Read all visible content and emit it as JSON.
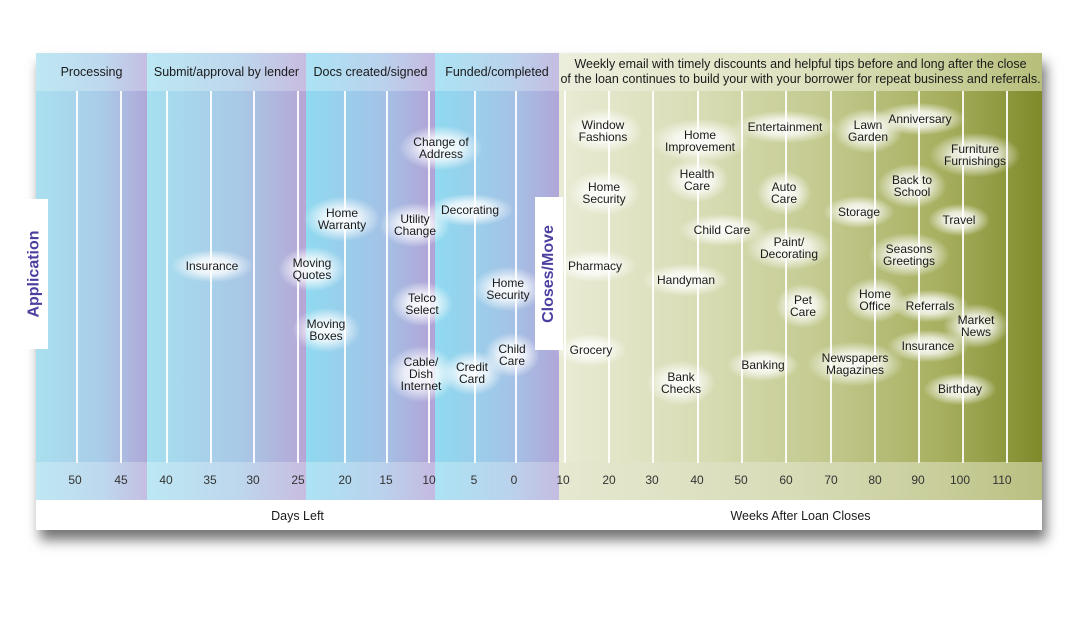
{
  "phases": [
    {
      "label": "Processing"
    },
    {
      "label": "Submit/approval by lender"
    },
    {
      "label": "Docs created/signed"
    },
    {
      "label": "Funded/completed"
    }
  ],
  "weekly_note": {
    "line1": "Weekly email with timely discounts and helpful tips before and long after the close",
    "line2": "of the loan continues to build your with your borrower for repeat business and referrals."
  },
  "markers": {
    "application": "Application",
    "closes_move": "Closes/Move"
  },
  "days_ticks": [
    "50",
    "45",
    "40",
    "35",
    "30",
    "25",
    "20",
    "15",
    "10",
    "5",
    "0"
  ],
  "weeks_ticks": [
    "10",
    "20",
    "30",
    "40",
    "50",
    "60",
    "70",
    "80",
    "90",
    "100",
    "110"
  ],
  "axis_labels": {
    "days": "Days Left",
    "weeks": "Weeks After  Loan Closes"
  },
  "pre_close_items": [
    {
      "label": "Insurance"
    },
    {
      "label": "Home\nWarranty"
    },
    {
      "label": "Moving\nQuotes"
    },
    {
      "label": "Moving\nBoxes"
    },
    {
      "label": "Utility\nChange"
    },
    {
      "label": "Telco\nSelect"
    },
    {
      "label": "Cable/\nDish\nInternet"
    },
    {
      "label": "Change of\nAddress"
    },
    {
      "label": "Decorating"
    },
    {
      "label": "Home\nSecurity"
    },
    {
      "label": "Credit\nCard"
    },
    {
      "label": "Child\nCare"
    }
  ],
  "post_close_items": [
    {
      "label": "Window\nFashions"
    },
    {
      "label": "Home\nSecurity"
    },
    {
      "label": "Pharmacy"
    },
    {
      "label": "Grocery"
    },
    {
      "label": "Home\nImprovement"
    },
    {
      "label": "Health\nCare"
    },
    {
      "label": "Child Care"
    },
    {
      "label": "Handyman"
    },
    {
      "label": "Bank\nChecks"
    },
    {
      "label": "Entertainment"
    },
    {
      "label": "Auto\nCare"
    },
    {
      "label": "Paint/\nDecorating"
    },
    {
      "label": "Pet\nCare"
    },
    {
      "label": "Banking"
    },
    {
      "label": "Lawn\nGarden"
    },
    {
      "label": "Anniversary"
    },
    {
      "label": "Storage"
    },
    {
      "label": "Back to\nSchool"
    },
    {
      "label": "Furniture\nFurnishings"
    },
    {
      "label": "Travel"
    },
    {
      "label": "Seasons\nGreetings"
    },
    {
      "label": "Home\nOffice"
    },
    {
      "label": "Referrals"
    },
    {
      "label": "Market\nNews"
    },
    {
      "label": "Newspapers\nMagazines"
    },
    {
      "label": "Insurance"
    },
    {
      "label": "Birthday"
    }
  ]
}
